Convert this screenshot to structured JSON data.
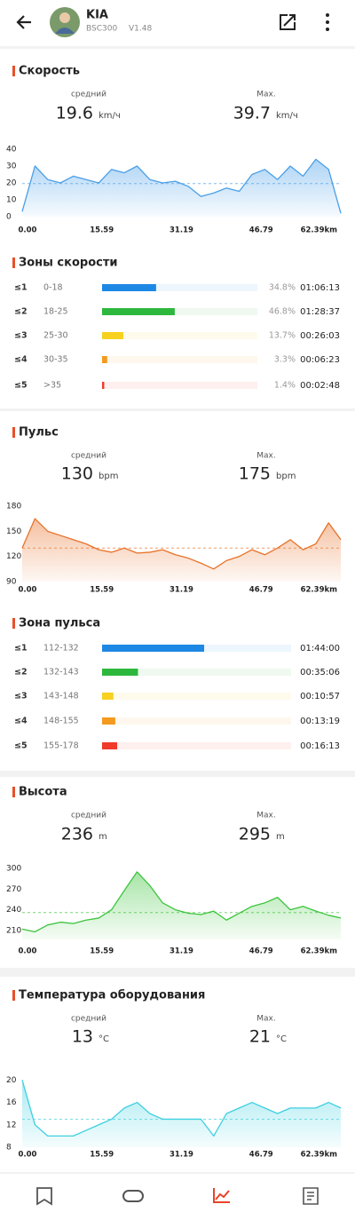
{
  "header": {
    "name": "KIA",
    "device": "BSC300",
    "version": "V1.48"
  },
  "sections": [
    {
      "title": "Скорость",
      "avg_label": "средний",
      "avg": 19.6,
      "avg_unit": "km/ч",
      "max_label": "Max.",
      "max": 39.7,
      "max_unit": "km/ч",
      "chart": {
        "type": "area",
        "color": "#4a9fe8",
        "x": [
          0,
          2.5,
          5,
          7.5,
          10,
          12.5,
          15,
          17.5,
          20,
          22.5,
          25,
          27.5,
          30,
          32.5,
          35,
          37.5,
          40,
          42.5,
          45,
          47.5,
          50,
          52.5,
          55,
          57.5,
          60,
          62.39
        ],
        "values": [
          3,
          30,
          22,
          20,
          24,
          22,
          20,
          28,
          26,
          30,
          22,
          20,
          21,
          18,
          12,
          14,
          17,
          15,
          25,
          28,
          22,
          30,
          24,
          34,
          28,
          2
        ],
        "xlim": [
          0,
          62.39
        ],
        "ylim": [
          0,
          40
        ],
        "yticks": [
          0,
          10,
          20,
          30,
          40
        ],
        "xticks": [
          {
            "value": 0,
            "label": "0.00"
          },
          15.59,
          31.19,
          46.79,
          {
            "value": 62.39,
            "label": "62.39km"
          }
        ]
      },
      "zones": {
        "title": "Зоны скорости",
        "rows": [
          {
            "level": "≤1",
            "range": "0-18",
            "percent": 34.8,
            "percent_label": "34.8%",
            "time": "01:06:13",
            "color": "#1e88e5"
          },
          {
            "level": "≤2",
            "range": "18-25",
            "percent": 46.8,
            "percent_label": "46.8%",
            "time": "01:28:37",
            "color": "#2db83d"
          },
          {
            "level": "≤3",
            "range": "25-30",
            "percent": 13.7,
            "percent_label": "13.7%",
            "time": "00:26:03",
            "color": "#f7d11e"
          },
          {
            "level": "≤4",
            "range": "30-35",
            "percent": 3.3,
            "percent_label": "3.3%",
            "time": "00:06:23",
            "color": "#f39a1f"
          },
          {
            "level": "≤5",
            "range": ">35",
            "percent": 1.4,
            "percent_label": "1.4%",
            "time": "00:02:48",
            "color": "#f03a2a"
          }
        ]
      }
    },
    {
      "title": "Пульс",
      "avg_label": "средний",
      "avg": 130,
      "avg_unit": "bpm",
      "max_label": "Max.",
      "max": 175,
      "max_unit": "bpm",
      "chart": {
        "type": "area",
        "color": "#e8722a",
        "x": [
          0,
          2.5,
          5,
          7.5,
          10,
          12.5,
          15,
          17.5,
          20,
          22.5,
          25,
          27.5,
          30,
          32.5,
          35,
          37.5,
          40,
          42.5,
          45,
          47.5,
          50,
          52.5,
          55,
          57.5,
          60,
          62.39
        ],
        "values": [
          130,
          165,
          150,
          145,
          140,
          135,
          128,
          125,
          130,
          124,
          125,
          128,
          122,
          118,
          112,
          105,
          115,
          120,
          128,
          122,
          130,
          140,
          128,
          135,
          160,
          140
        ],
        "xlim": [
          0,
          62.39
        ],
        "ylim": [
          90,
          180
        ],
        "yticks": [
          90,
          120,
          150,
          180
        ],
        "xticks": [
          {
            "value": 0,
            "label": "0.00"
          },
          15.59,
          31.19,
          46.79,
          {
            "value": 62.39,
            "label": "62.39km"
          }
        ]
      },
      "zones": {
        "title": "Зона пульса",
        "rows": [
          {
            "level": "≤1",
            "range": "112-132",
            "share": 54,
            "time": "01:44:00",
            "color": "#1e88e5"
          },
          {
            "level": "≤2",
            "range": "132-143",
            "share": 19,
            "time": "00:35:06",
            "color": "#2db83d"
          },
          {
            "level": "≤3",
            "range": "143-148",
            "share": 6,
            "time": "00:10:57",
            "color": "#f7d11e"
          },
          {
            "level": "≤4",
            "range": "148-155",
            "share": 7,
            "time": "00:13:19",
            "color": "#f39a1f"
          },
          {
            "level": "≤5",
            "range": "155-178",
            "share": 8,
            "time": "00:16:13",
            "color": "#f03a2a"
          }
        ]
      }
    },
    {
      "title": "Высота",
      "avg_label": "средний",
      "avg": 236,
      "avg_unit": "m",
      "max_label": "Max.",
      "max": 295,
      "max_unit": "m",
      "chart": {
        "type": "area",
        "color": "#3cc43c",
        "x": [
          0,
          2.5,
          5,
          7.5,
          10,
          12.5,
          15,
          17.5,
          20,
          22.5,
          25,
          27.5,
          30,
          32.5,
          35,
          37.5,
          40,
          42.5,
          45,
          47.5,
          50,
          52.5,
          55,
          57.5,
          60,
          62.39
        ],
        "values": [
          212,
          208,
          218,
          222,
          220,
          225,
          228,
          240,
          268,
          295,
          275,
          250,
          240,
          235,
          233,
          238,
          225,
          235,
          245,
          250,
          258,
          240,
          245,
          238,
          232,
          228
        ],
        "xlim": [
          0,
          62.39
        ],
        "ylim": [
          197,
          300
        ],
        "yticks": [
          210,
          240,
          270,
          300
        ],
        "xticks": [
          {
            "value": 0,
            "label": "0.00"
          },
          15.59,
          31.19,
          46.79,
          {
            "value": 62.39,
            "label": "62.39km"
          }
        ]
      }
    },
    {
      "title": "Температура оборудования",
      "avg_label": "средний",
      "avg": 13,
      "avg_unit": "°C",
      "max_label": "Max.",
      "max": 21,
      "max_unit": "°C",
      "chart": {
        "type": "area",
        "color": "#3dd0e0",
        "x": [
          0,
          2.5,
          5,
          7.5,
          10,
          12.5,
          15,
          17.5,
          20,
          22.5,
          25,
          27.5,
          30,
          32.5,
          35,
          37.5,
          40,
          42.5,
          45,
          47.5,
          50,
          52.5,
          55,
          57.5,
          60,
          62.39
        ],
        "values": [
          20,
          12,
          10,
          10,
          10,
          11,
          12,
          13,
          15,
          16,
          14,
          13,
          13,
          13,
          13,
          10,
          14,
          15,
          16,
          15,
          14,
          15,
          15,
          15,
          16,
          15
        ],
        "xlim": [
          0,
          62.39
        ],
        "ylim": [
          8,
          21
        ],
        "yticks": [
          8,
          12,
          16,
          20
        ],
        "xticks": [
          {
            "value": 0,
            "label": "0.00"
          },
          15.59,
          31.19,
          46.79,
          {
            "value": 62.39,
            "label": "62.39km"
          }
        ]
      }
    }
  ]
}
